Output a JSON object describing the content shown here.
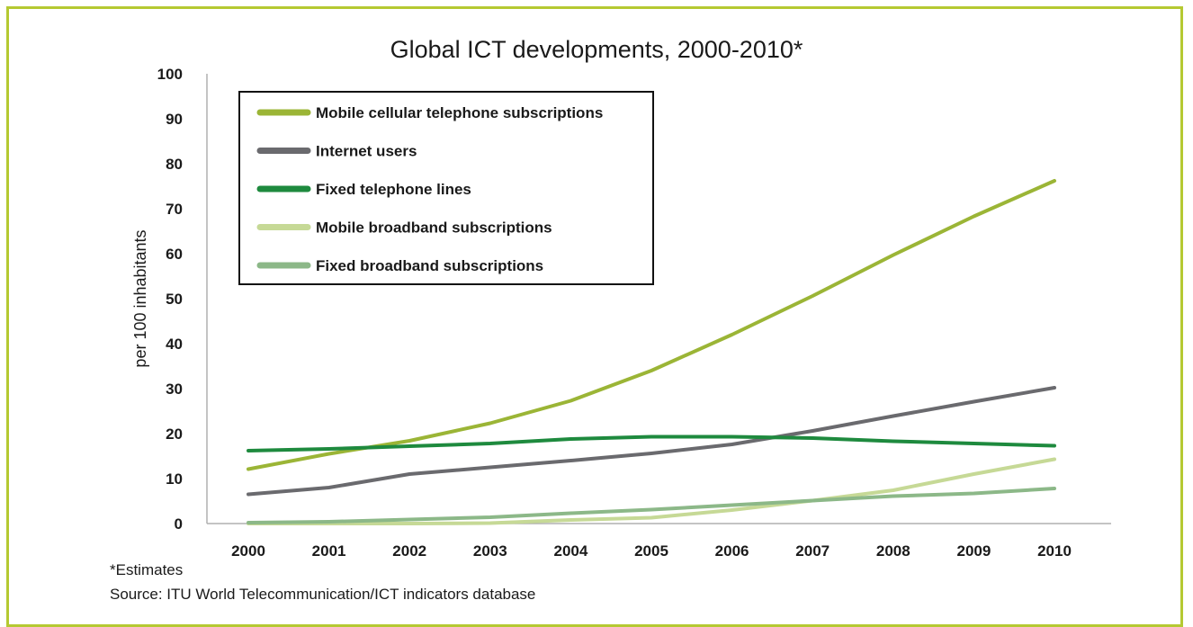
{
  "chart_data": {
    "type": "line",
    "title": "Global ICT developments, 2000-2010*",
    "ylabel": "per 100 inhabitants",
    "xlabel": "",
    "ylim": [
      0,
      100
    ],
    "yticks": [
      0,
      10,
      20,
      30,
      40,
      50,
      60,
      70,
      80,
      90,
      100
    ],
    "x": [
      "2000",
      "2001",
      "2002",
      "2003",
      "2004",
      "2005",
      "2006",
      "2007",
      "2008",
      "2009",
      "2010"
    ],
    "grid": false,
    "legend_position": "top-left",
    "series": [
      {
        "name": "Mobile cellular telephone subscriptions",
        "color": "#9bb536",
        "values": [
          12.1,
          15.5,
          18.4,
          22.3,
          27.3,
          34.0,
          42.0,
          50.6,
          59.7,
          68.3,
          76.2
        ]
      },
      {
        "name": "Internet users",
        "color": "#6a6a6e",
        "values": [
          6.5,
          8.0,
          11.0,
          12.5,
          14.0,
          15.6,
          17.6,
          20.6,
          23.9,
          27.1,
          30.2
        ]
      },
      {
        "name": "Fixed telephone lines",
        "color": "#1e8a3e",
        "values": [
          16.2,
          16.6,
          17.2,
          17.8,
          18.8,
          19.3,
          19.3,
          19.0,
          18.3,
          17.8,
          17.3
        ]
      },
      {
        "name": "Mobile broadband subscriptions",
        "color": "#c6d996",
        "values": [
          0.0,
          0.0,
          0.0,
          0.1,
          0.8,
          1.3,
          3.0,
          5.1,
          7.4,
          11.0,
          14.3
        ]
      },
      {
        "name": "Fixed broadband subscriptions",
        "color": "#8cb888",
        "values": [
          0.2,
          0.4,
          0.9,
          1.4,
          2.3,
          3.1,
          4.1,
          5.1,
          6.1,
          6.7,
          7.8
        ]
      }
    ]
  },
  "notes": {
    "estimates": "*Estimates",
    "source": "Source: ITU World Telecommunication/ICT indicators database"
  }
}
